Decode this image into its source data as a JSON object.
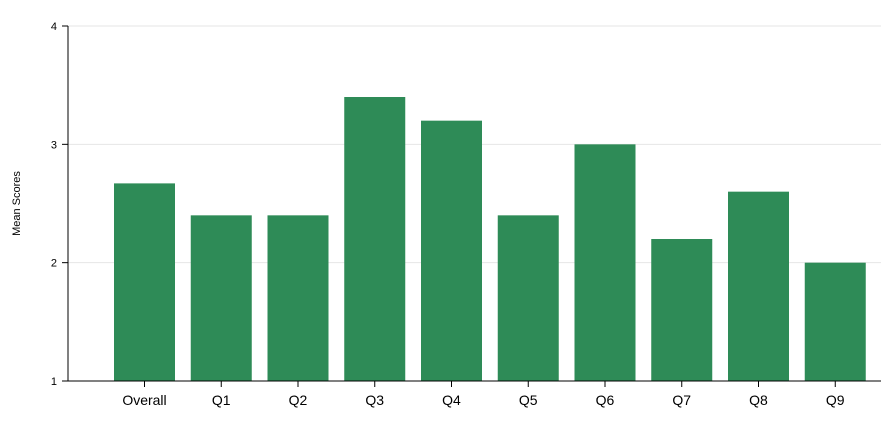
{
  "chart_data": {
    "type": "bar",
    "categories": [
      "Overall",
      "Q1",
      "Q2",
      "Q3",
      "Q4",
      "Q5",
      "Q6",
      "Q7",
      "Q8",
      "Q9"
    ],
    "values": [
      2.67,
      2.4,
      2.4,
      3.4,
      3.2,
      2.4,
      3.0,
      2.2,
      2.6,
      2.0
    ],
    "title": "",
    "xlabel": "",
    "ylabel": "Mean Scores",
    "ylim": [
      1,
      4
    ],
    "yticks": [
      "1",
      "2",
      "3",
      "4"
    ],
    "grid": true,
    "legend": "none",
    "bar_color": "#2e8b57"
  }
}
